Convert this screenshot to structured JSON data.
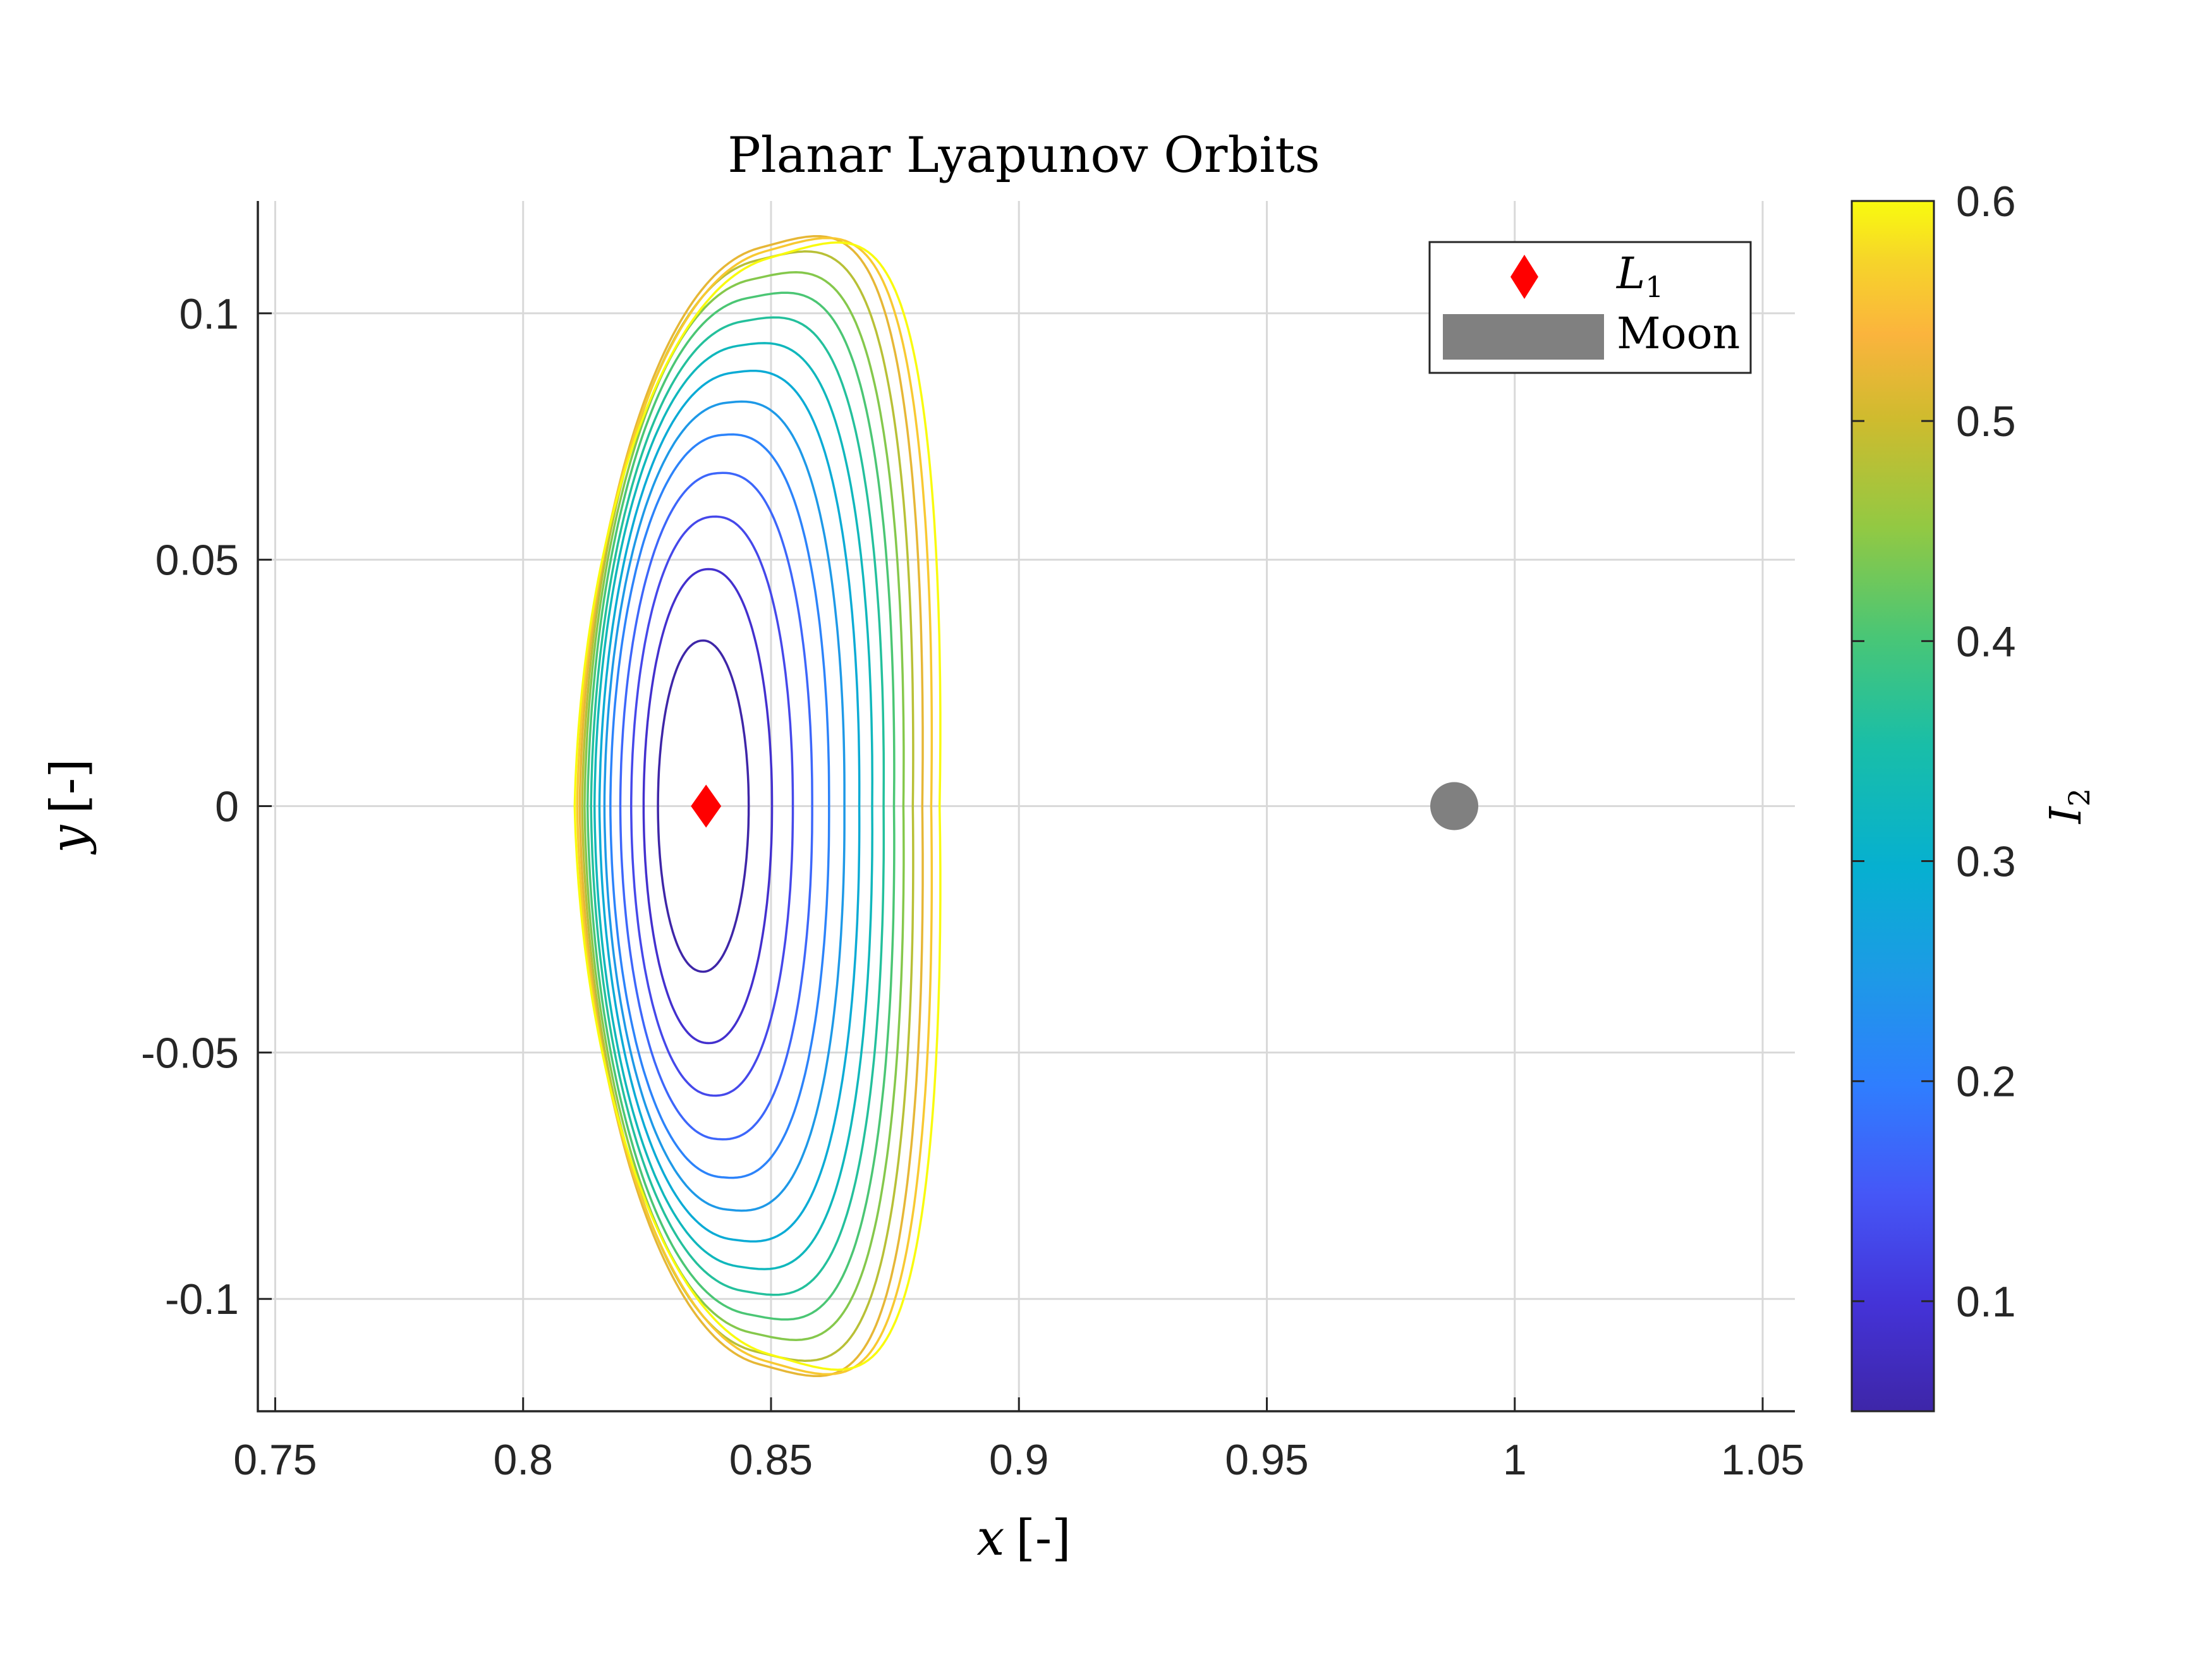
{
  "chart_data": {
    "type": "line",
    "title": "Planar Lyapunov Orbits",
    "xlabel_var": "x",
    "xlabel_unit": "[-]",
    "ylabel_var": "y",
    "ylabel_unit": "[-]",
    "xlim": [
      0.7465,
      1.0565
    ],
    "ylim": [
      -0.1228,
      0.1228
    ],
    "xticks": [
      0.75,
      0.8,
      0.85,
      0.9,
      0.95,
      1,
      1.05
    ],
    "xtick_labels": [
      "0.75",
      "0.8",
      "0.85",
      "0.9",
      "0.95",
      "1",
      "1.05"
    ],
    "yticks": [
      -0.1,
      -0.05,
      0,
      0.05,
      0.1
    ],
    "ytick_labels": [
      "-0.1",
      "-0.05",
      "0",
      "0.05",
      "0.1"
    ],
    "grid": true,
    "colorbar": {
      "label_var": "I",
      "label_sub": "2",
      "range": [
        0.05,
        0.6
      ],
      "ticks": [
        0.1,
        0.2,
        0.3,
        0.4,
        0.5,
        0.6
      ],
      "tick_labels": [
        "0.1",
        "0.2",
        "0.3",
        "0.4",
        "0.5",
        "0.6"
      ],
      "colormap": "parula"
    },
    "orbits": [
      {
        "I2": 0.05,
        "x_left": 0.8272,
        "x_right": 0.8455,
        "y_max": 0.0336
      },
      {
        "I2": 0.0893,
        "x_left": 0.8243,
        "x_right": 0.8502,
        "y_max": 0.0484
      },
      {
        "I2": 0.1286,
        "x_left": 0.8218,
        "x_right": 0.8544,
        "y_max": 0.0595
      },
      {
        "I2": 0.1679,
        "x_left": 0.8196,
        "x_right": 0.8583,
        "y_max": 0.0689
      },
      {
        "I2": 0.2071,
        "x_left": 0.8176,
        "x_right": 0.8617,
        "y_max": 0.0773
      },
      {
        "I2": 0.2464,
        "x_left": 0.8164,
        "x_right": 0.8648,
        "y_max": 0.0846
      },
      {
        "I2": 0.2857,
        "x_left": 0.8154,
        "x_right": 0.8678,
        "y_max": 0.0915
      },
      {
        "I2": 0.325,
        "x_left": 0.8144,
        "x_right": 0.8704,
        "y_max": 0.0978
      },
      {
        "I2": 0.3643,
        "x_left": 0.8137,
        "x_right": 0.8727,
        "y_max": 0.1037
      },
      {
        "I2": 0.4036,
        "x_left": 0.813,
        "x_right": 0.8748,
        "y_max": 0.1094
      },
      {
        "I2": 0.4429,
        "x_left": 0.8124,
        "x_right": 0.8767,
        "y_max": 0.1142
      },
      {
        "I2": 0.4821,
        "x_left": 0.8119,
        "x_right": 0.8786,
        "y_max": 0.1191
      },
      {
        "I2": 0.5214,
        "x_left": 0.8114,
        "x_right": 0.8805,
        "y_max": 0.1237
      },
      {
        "I2": 0.5607,
        "x_left": 0.8109,
        "x_right": 0.8823,
        "y_max": 0.128
      },
      {
        "I2": 0.6,
        "x_left": 0.8104,
        "x_right": 0.884,
        "y_max": 0.1222
      }
    ],
    "markers": [
      {
        "name": "L1",
        "label_var": "L",
        "label_sub": "1",
        "x": 0.8369,
        "y": 0,
        "shape": "diamond",
        "color": "#ff0000"
      },
      {
        "name": "Moon",
        "label": "Moon",
        "x": 0.9878,
        "y": 0,
        "shape": "circle",
        "color": "#808080"
      }
    ],
    "legend": {
      "position": "top-right"
    }
  }
}
